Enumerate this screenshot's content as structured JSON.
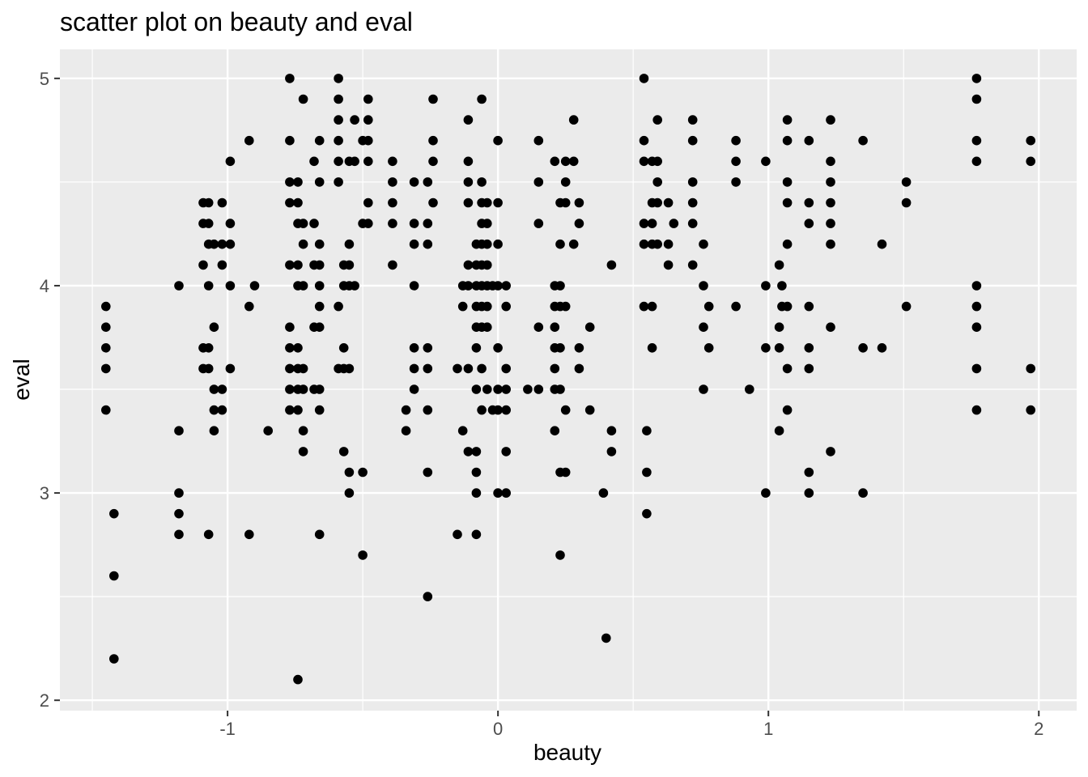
{
  "chart_data": {
    "type": "scatter",
    "title": "scatter plot on beauty and eval",
    "xlabel": "beauty",
    "ylabel": "eval",
    "xlim": [
      -1.62,
      2.14
    ],
    "ylim": [
      1.95,
      5.14
    ],
    "x_ticks": [
      -1,
      0,
      1,
      2
    ],
    "x_tick_labels": [
      "-1",
      "0",
      "1",
      "2"
    ],
    "y_ticks": [
      2,
      3,
      4,
      5
    ],
    "y_tick_labels": [
      "2",
      "3",
      "4",
      "5"
    ],
    "grid": true,
    "legend": "none",
    "colors": {
      "panel": "#ebebeb",
      "grid": "#ffffff",
      "point": "#000000",
      "tick": "#333333",
      "tick_label": "#4d4d4d"
    },
    "points": [
      [
        -1.45,
        3.9
      ],
      [
        -1.45,
        3.8
      ],
      [
        -1.45,
        3.7
      ],
      [
        -1.45,
        3.6
      ],
      [
        -1.45,
        3.4
      ],
      [
        -1.42,
        2.9
      ],
      [
        -1.42,
        2.6
      ],
      [
        -1.42,
        2.2
      ],
      [
        -1.18,
        4.0
      ],
      [
        -1.18,
        3.3
      ],
      [
        -1.18,
        3.0
      ],
      [
        -1.18,
        2.9
      ],
      [
        -1.18,
        2.8
      ],
      [
        -1.09,
        4.4
      ],
      [
        -1.09,
        4.3
      ],
      [
        -1.09,
        4.1
      ],
      [
        -1.09,
        3.7
      ],
      [
        -1.09,
        3.6
      ],
      [
        -1.07,
        4.4
      ],
      [
        -1.07,
        4.3
      ],
      [
        -1.07,
        4.2
      ],
      [
        -1.07,
        4.0
      ],
      [
        -1.07,
        3.7
      ],
      [
        -1.07,
        3.6
      ],
      [
        -1.07,
        2.8
      ],
      [
        -1.05,
        4.2
      ],
      [
        -1.05,
        3.8
      ],
      [
        -1.05,
        3.5
      ],
      [
        -1.05,
        3.4
      ],
      [
        -1.05,
        3.3
      ],
      [
        -1.02,
        4.4
      ],
      [
        -1.02,
        4.2
      ],
      [
        -1.02,
        4.1
      ],
      [
        -1.02,
        3.5
      ],
      [
        -1.02,
        3.4
      ],
      [
        -0.99,
        4.6
      ],
      [
        -0.99,
        4.3
      ],
      [
        -0.99,
        4.2
      ],
      [
        -0.99,
        4.0
      ],
      [
        -0.99,
        3.6
      ],
      [
        -0.92,
        4.7
      ],
      [
        -0.92,
        3.9
      ],
      [
        -0.92,
        2.8
      ],
      [
        -0.9,
        4.0
      ],
      [
        -0.85,
        3.3
      ],
      [
        -0.77,
        5.0
      ],
      [
        -0.77,
        4.7
      ],
      [
        -0.77,
        4.5
      ],
      [
        -0.77,
        4.4
      ],
      [
        -0.77,
        4.1
      ],
      [
        -0.77,
        3.8
      ],
      [
        -0.77,
        3.7
      ],
      [
        -0.77,
        3.6
      ],
      [
        -0.77,
        3.5
      ],
      [
        -0.77,
        3.4
      ],
      [
        -0.74,
        4.5
      ],
      [
        -0.74,
        4.4
      ],
      [
        -0.74,
        4.3
      ],
      [
        -0.74,
        4.1
      ],
      [
        -0.74,
        4.0
      ],
      [
        -0.74,
        3.7
      ],
      [
        -0.74,
        3.6
      ],
      [
        -0.74,
        3.5
      ],
      [
        -0.74,
        3.4
      ],
      [
        -0.74,
        2.1
      ],
      [
        -0.72,
        4.9
      ],
      [
        -0.72,
        4.3
      ],
      [
        -0.72,
        4.2
      ],
      [
        -0.72,
        4.0
      ],
      [
        -0.72,
        3.6
      ],
      [
        -0.72,
        3.5
      ],
      [
        -0.72,
        3.3
      ],
      [
        -0.72,
        3.2
      ],
      [
        -0.68,
        4.6
      ],
      [
        -0.68,
        4.3
      ],
      [
        -0.68,
        4.1
      ],
      [
        -0.68,
        3.8
      ],
      [
        -0.68,
        3.5
      ],
      [
        -0.66,
        4.7
      ],
      [
        -0.66,
        4.5
      ],
      [
        -0.66,
        4.2
      ],
      [
        -0.66,
        4.1
      ],
      [
        -0.66,
        4.0
      ],
      [
        -0.66,
        3.9
      ],
      [
        -0.66,
        3.8
      ],
      [
        -0.66,
        3.5
      ],
      [
        -0.66,
        3.4
      ],
      [
        -0.66,
        2.8
      ],
      [
        -0.59,
        5.0
      ],
      [
        -0.59,
        4.9
      ],
      [
        -0.59,
        4.8
      ],
      [
        -0.59,
        4.7
      ],
      [
        -0.59,
        4.6
      ],
      [
        -0.59,
        4.5
      ],
      [
        -0.59,
        3.9
      ],
      [
        -0.59,
        3.6
      ],
      [
        -0.57,
        4.1
      ],
      [
        -0.57,
        4.0
      ],
      [
        -0.57,
        3.7
      ],
      [
        -0.57,
        3.6
      ],
      [
        -0.57,
        3.2
      ],
      [
        -0.55,
        4.6
      ],
      [
        -0.55,
        4.2
      ],
      [
        -0.55,
        4.1
      ],
      [
        -0.55,
        4.0
      ],
      [
        -0.55,
        3.6
      ],
      [
        -0.55,
        3.1
      ],
      [
        -0.55,
        3.0
      ],
      [
        -0.53,
        4.8
      ],
      [
        -0.53,
        4.6
      ],
      [
        -0.53,
        4.0
      ],
      [
        -0.5,
        4.7
      ],
      [
        -0.5,
        4.3
      ],
      [
        -0.5,
        3.1
      ],
      [
        -0.5,
        2.7
      ],
      [
        -0.48,
        4.9
      ],
      [
        -0.48,
        4.8
      ],
      [
        -0.48,
        4.7
      ],
      [
        -0.48,
        4.6
      ],
      [
        -0.48,
        4.4
      ],
      [
        -0.48,
        4.3
      ],
      [
        -0.39,
        4.6
      ],
      [
        -0.39,
        4.5
      ],
      [
        -0.39,
        4.4
      ],
      [
        -0.39,
        4.3
      ],
      [
        -0.39,
        4.1
      ],
      [
        -0.34,
        3.4
      ],
      [
        -0.34,
        3.3
      ],
      [
        -0.31,
        4.5
      ],
      [
        -0.31,
        4.3
      ],
      [
        -0.31,
        4.2
      ],
      [
        -0.31,
        4.0
      ],
      [
        -0.31,
        3.7
      ],
      [
        -0.31,
        3.6
      ],
      [
        -0.31,
        3.5
      ],
      [
        -0.26,
        4.5
      ],
      [
        -0.26,
        4.3
      ],
      [
        -0.26,
        4.2
      ],
      [
        -0.26,
        3.7
      ],
      [
        -0.26,
        3.6
      ],
      [
        -0.26,
        3.4
      ],
      [
        -0.26,
        3.1
      ],
      [
        -0.26,
        2.5
      ],
      [
        -0.24,
        4.9
      ],
      [
        -0.24,
        4.7
      ],
      [
        -0.24,
        4.6
      ],
      [
        -0.24,
        4.4
      ],
      [
        -0.15,
        3.6
      ],
      [
        -0.15,
        2.8
      ],
      [
        -0.13,
        4.0
      ],
      [
        -0.13,
        3.9
      ],
      [
        -0.13,
        3.3
      ],
      [
        -0.11,
        4.8
      ],
      [
        -0.11,
        4.6
      ],
      [
        -0.11,
        4.5
      ],
      [
        -0.11,
        4.4
      ],
      [
        -0.11,
        4.1
      ],
      [
        -0.11,
        4.0
      ],
      [
        -0.11,
        3.6
      ],
      [
        -0.11,
        3.2
      ],
      [
        -0.08,
        4.2
      ],
      [
        -0.08,
        4.1
      ],
      [
        -0.08,
        4.0
      ],
      [
        -0.08,
        3.9
      ],
      [
        -0.08,
        3.8
      ],
      [
        -0.08,
        3.7
      ],
      [
        -0.08,
        3.5
      ],
      [
        -0.08,
        3.2
      ],
      [
        -0.08,
        3.1
      ],
      [
        -0.08,
        3.0
      ],
      [
        -0.08,
        2.8
      ],
      [
        -0.06,
        4.9
      ],
      [
        -0.06,
        4.5
      ],
      [
        -0.06,
        4.4
      ],
      [
        -0.06,
        4.3
      ],
      [
        -0.06,
        4.2
      ],
      [
        -0.06,
        4.1
      ],
      [
        -0.06,
        4.0
      ],
      [
        -0.06,
        3.9
      ],
      [
        -0.06,
        3.8
      ],
      [
        -0.06,
        3.6
      ],
      [
        -0.06,
        3.4
      ],
      [
        -0.04,
        4.4
      ],
      [
        -0.04,
        4.3
      ],
      [
        -0.04,
        4.2
      ],
      [
        -0.04,
        4.1
      ],
      [
        -0.04,
        4.0
      ],
      [
        -0.04,
        3.9
      ],
      [
        -0.04,
        3.8
      ],
      [
        -0.04,
        3.5
      ],
      [
        -0.02,
        4.0
      ],
      [
        -0.02,
        3.4
      ],
      [
        0.0,
        4.7
      ],
      [
        0.0,
        4.4
      ],
      [
        0.0,
        4.2
      ],
      [
        0.0,
        4.0
      ],
      [
        0.0,
        3.7
      ],
      [
        0.0,
        3.5
      ],
      [
        0.0,
        3.4
      ],
      [
        0.0,
        3.0
      ],
      [
        0.03,
        4.0
      ],
      [
        0.03,
        3.9
      ],
      [
        0.03,
        3.6
      ],
      [
        0.03,
        3.5
      ],
      [
        0.03,
        3.4
      ],
      [
        0.03,
        3.2
      ],
      [
        0.03,
        3.0
      ],
      [
        0.11,
        3.5
      ],
      [
        0.15,
        4.7
      ],
      [
        0.15,
        4.5
      ],
      [
        0.15,
        4.3
      ],
      [
        0.15,
        3.8
      ],
      [
        0.15,
        3.5
      ],
      [
        0.21,
        4.6
      ],
      [
        0.21,
        4.0
      ],
      [
        0.21,
        3.9
      ],
      [
        0.21,
        3.8
      ],
      [
        0.21,
        3.7
      ],
      [
        0.21,
        3.6
      ],
      [
        0.21,
        3.5
      ],
      [
        0.21,
        3.3
      ],
      [
        0.23,
        4.4
      ],
      [
        0.23,
        4.2
      ],
      [
        0.23,
        4.0
      ],
      [
        0.23,
        3.9
      ],
      [
        0.23,
        3.7
      ],
      [
        0.23,
        3.5
      ],
      [
        0.23,
        3.1
      ],
      [
        0.23,
        2.7
      ],
      [
        0.25,
        4.6
      ],
      [
        0.25,
        4.5
      ],
      [
        0.25,
        4.4
      ],
      [
        0.25,
        3.9
      ],
      [
        0.25,
        3.4
      ],
      [
        0.25,
        3.1
      ],
      [
        0.28,
        4.8
      ],
      [
        0.28,
        4.6
      ],
      [
        0.28,
        4.2
      ],
      [
        0.3,
        4.4
      ],
      [
        0.3,
        4.3
      ],
      [
        0.3,
        3.7
      ],
      [
        0.3,
        3.6
      ],
      [
        0.34,
        3.8
      ],
      [
        0.34,
        3.4
      ],
      [
        0.39,
        3.0
      ],
      [
        0.4,
        2.3
      ],
      [
        0.42,
        4.1
      ],
      [
        0.42,
        3.3
      ],
      [
        0.42,
        3.2
      ],
      [
        0.54,
        5.0
      ],
      [
        0.54,
        4.7
      ],
      [
        0.54,
        4.6
      ],
      [
        0.54,
        4.3
      ],
      [
        0.54,
        4.2
      ],
      [
        0.54,
        3.9
      ],
      [
        0.55,
        2.9
      ],
      [
        0.55,
        3.3
      ],
      [
        0.55,
        3.1
      ],
      [
        0.57,
        4.6
      ],
      [
        0.57,
        4.4
      ],
      [
        0.57,
        4.3
      ],
      [
        0.57,
        4.2
      ],
      [
        0.57,
        3.9
      ],
      [
        0.57,
        3.7
      ],
      [
        0.59,
        4.8
      ],
      [
        0.59,
        4.6
      ],
      [
        0.59,
        4.5
      ],
      [
        0.59,
        4.4
      ],
      [
        0.59,
        4.2
      ],
      [
        0.63,
        4.4
      ],
      [
        0.63,
        4.2
      ],
      [
        0.63,
        4.1
      ],
      [
        0.65,
        4.3
      ],
      [
        0.72,
        4.8
      ],
      [
        0.72,
        4.7
      ],
      [
        0.72,
        4.5
      ],
      [
        0.72,
        4.4
      ],
      [
        0.72,
        4.3
      ],
      [
        0.72,
        4.1
      ],
      [
        0.76,
        4.2
      ],
      [
        0.76,
        4.0
      ],
      [
        0.76,
        3.8
      ],
      [
        0.76,
        3.5
      ],
      [
        0.78,
        3.9
      ],
      [
        0.78,
        3.7
      ],
      [
        0.88,
        4.7
      ],
      [
        0.88,
        4.6
      ],
      [
        0.88,
        4.5
      ],
      [
        0.88,
        3.9
      ],
      [
        0.93,
        3.5
      ],
      [
        0.99,
        4.6
      ],
      [
        0.99,
        4.0
      ],
      [
        0.99,
        3.7
      ],
      [
        0.99,
        3.0
      ],
      [
        1.04,
        4.1
      ],
      [
        1.04,
        3.8
      ],
      [
        1.04,
        3.7
      ],
      [
        1.04,
        3.3
      ],
      [
        1.05,
        4.0
      ],
      [
        1.05,
        3.9
      ],
      [
        1.07,
        4.8
      ],
      [
        1.07,
        4.7
      ],
      [
        1.07,
        4.5
      ],
      [
        1.07,
        4.4
      ],
      [
        1.07,
        4.2
      ],
      [
        1.07,
        3.9
      ],
      [
        1.07,
        3.6
      ],
      [
        1.07,
        3.4
      ],
      [
        1.15,
        4.7
      ],
      [
        1.15,
        4.4
      ],
      [
        1.15,
        4.3
      ],
      [
        1.15,
        3.9
      ],
      [
        1.15,
        3.7
      ],
      [
        1.15,
        3.6
      ],
      [
        1.15,
        3.1
      ],
      [
        1.15,
        3.0
      ],
      [
        1.23,
        4.8
      ],
      [
        1.23,
        4.6
      ],
      [
        1.23,
        4.5
      ],
      [
        1.23,
        4.4
      ],
      [
        1.23,
        4.3
      ],
      [
        1.23,
        4.2
      ],
      [
        1.23,
        3.8
      ],
      [
        1.23,
        3.2
      ],
      [
        1.35,
        4.7
      ],
      [
        1.35,
        3.7
      ],
      [
        1.35,
        3.0
      ],
      [
        1.42,
        4.2
      ],
      [
        1.42,
        3.7
      ],
      [
        1.51,
        4.5
      ],
      [
        1.51,
        4.4
      ],
      [
        1.51,
        3.9
      ],
      [
        1.77,
        5.0
      ],
      [
        1.77,
        4.9
      ],
      [
        1.77,
        4.7
      ],
      [
        1.77,
        4.6
      ],
      [
        1.77,
        4.0
      ],
      [
        1.77,
        3.9
      ],
      [
        1.77,
        3.8
      ],
      [
        1.77,
        3.6
      ],
      [
        1.77,
        3.4
      ],
      [
        1.97,
        4.7
      ],
      [
        1.97,
        4.6
      ],
      [
        1.97,
        3.6
      ],
      [
        1.97,
        3.4
      ]
    ]
  }
}
